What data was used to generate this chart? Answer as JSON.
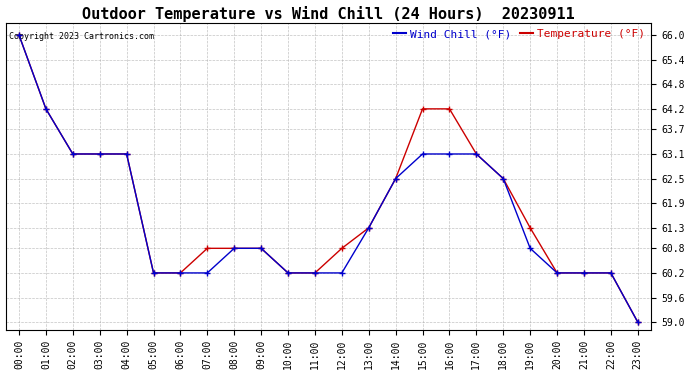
{
  "title": "Outdoor Temperature vs Wind Chill (24 Hours)  20230911",
  "copyright": "Copyright 2023 Cartronics.com",
  "legend_wind_chill": "Wind Chill (°F)",
  "legend_temperature": "Temperature (°F)",
  "x_labels": [
    "00:00",
    "01:00",
    "02:00",
    "03:00",
    "04:00",
    "05:00",
    "06:00",
    "07:00",
    "08:00",
    "09:00",
    "10:00",
    "11:00",
    "12:00",
    "13:00",
    "14:00",
    "15:00",
    "16:00",
    "17:00",
    "18:00",
    "19:00",
    "20:00",
    "21:00",
    "22:00",
    "23:00"
  ],
  "temperature": [
    66.0,
    64.2,
    63.1,
    63.1,
    63.1,
    60.2,
    60.2,
    60.8,
    60.8,
    60.8,
    60.2,
    60.2,
    60.8,
    61.3,
    62.5,
    64.2,
    64.2,
    63.1,
    62.5,
    61.3,
    60.2,
    60.2,
    60.2,
    59.0
  ],
  "wind_chill": [
    66.0,
    64.2,
    63.1,
    63.1,
    63.1,
    60.2,
    60.2,
    60.2,
    60.8,
    60.8,
    60.2,
    60.2,
    60.2,
    61.3,
    62.5,
    63.1,
    63.1,
    63.1,
    62.5,
    60.8,
    60.2,
    60.2,
    60.2,
    59.0
  ],
  "ylim_min": 58.8,
  "ylim_max": 66.3,
  "yticks": [
    59.0,
    59.6,
    60.2,
    60.8,
    61.3,
    61.9,
    62.5,
    63.1,
    63.7,
    64.2,
    64.8,
    65.4,
    66.0
  ],
  "temp_color": "#cc0000",
  "wind_chill_color": "#0000cc",
  "background_color": "#ffffff",
  "grid_color": "#aaaaaa",
  "title_fontsize": 11,
  "axis_fontsize": 7,
  "legend_fontsize": 8
}
